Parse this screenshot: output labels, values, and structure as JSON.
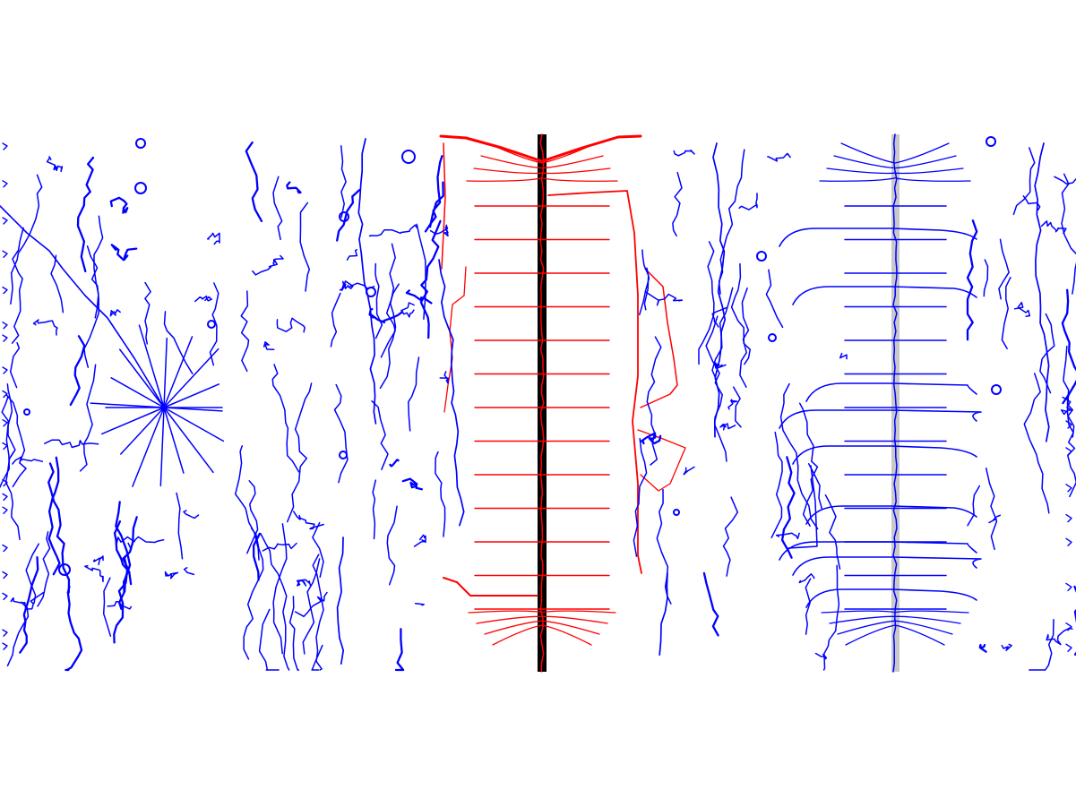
{
  "colors": {
    "background": "#ffffff",
    "blue": "#0000ff",
    "red": "#ff0000",
    "black": "#000000",
    "gray": "#c8c8c8"
  },
  "panels": [
    {
      "name": "panel-1",
      "color": "blue"
    },
    {
      "name": "panel-2-radial-burst",
      "color": "blue"
    },
    {
      "name": "panel-3",
      "color": "blue"
    },
    {
      "name": "panel-4",
      "color": "blue"
    },
    {
      "name": "panel-5-red-ladder",
      "color": "red",
      "spine": "black"
    },
    {
      "name": "panel-6",
      "color": "blue"
    },
    {
      "name": "panel-7",
      "color": "blue"
    },
    {
      "name": "panel-8-blue-ladder",
      "color": "blue",
      "spine": "gray"
    },
    {
      "name": "panel-9",
      "color": "blue"
    }
  ]
}
